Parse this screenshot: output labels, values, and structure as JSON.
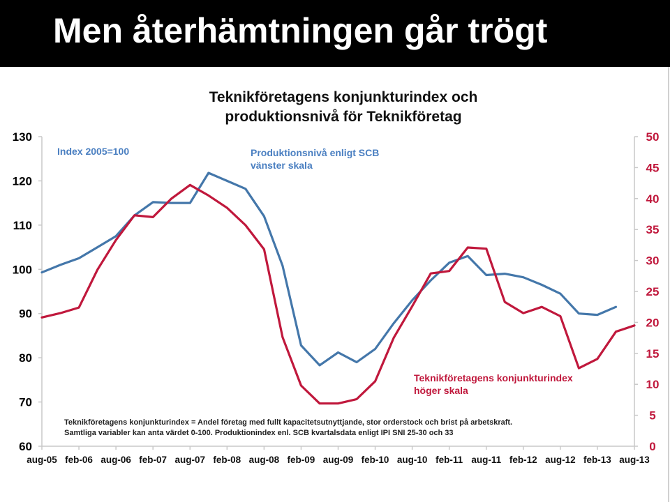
{
  "slide": {
    "title": "Men återhämtningen går trögt"
  },
  "chart_data": {
    "type": "line",
    "title_lines": [
      "Teknikföretagens konjunkturindex och",
      "produktionsnivå för Teknikföretag"
    ],
    "index_note": "Index 2005=100",
    "x_labels": [
      "aug-05",
      "feb-06",
      "aug-06",
      "feb-07",
      "aug-07",
      "feb-08",
      "aug-08",
      "feb-09",
      "aug-09",
      "feb-10",
      "aug-10",
      "feb-11",
      "aug-11",
      "feb-12",
      "aug-12",
      "feb-13",
      "aug-13"
    ],
    "left_axis": {
      "ylim": [
        60,
        130
      ],
      "ticks": [
        60,
        70,
        80,
        90,
        100,
        110,
        120,
        130
      ]
    },
    "right_axis": {
      "ylim": [
        0,
        50
      ],
      "ticks": [
        0,
        5,
        10,
        15,
        20,
        25,
        30,
        35,
        40,
        45,
        50
      ]
    },
    "grid": false,
    "colors": {
      "produktion": "#4477aa",
      "konjunktur": "#c0183c",
      "left_ticks": "#000000",
      "right_ticks": "#c0183c",
      "label_blue": "#4a7fc1",
      "label_red": "#c0183c"
    },
    "series": [
      {
        "key": "produktion",
        "axis": "left",
        "label_lines": [
          "Produktionsnivå enligt SCB",
          "vänster skala"
        ],
        "x": [
          0,
          0.5,
          1,
          1.5,
          2,
          2.5,
          3,
          3.5,
          4,
          4.5,
          5,
          5.5,
          6,
          6.5,
          7,
          7.5,
          8,
          8.5,
          9,
          9.5,
          10,
          10.5,
          11,
          11.5,
          12,
          12.5,
          13,
          13.5,
          14,
          14.5,
          15,
          15.5,
          16
        ],
        "values": [
          99.3,
          101.0,
          102.5,
          105.0,
          107.5,
          112.2,
          115.2,
          115.0,
          115.0,
          121.8,
          120.0,
          118.2,
          112.0,
          100.8,
          82.8,
          78.3,
          81.2,
          79.0,
          82.0,
          87.8,
          93.0,
          97.5,
          101.5,
          103.0,
          98.7,
          99.0,
          98.2,
          96.5,
          94.5,
          90.0,
          89.7,
          91.5,
          null
        ]
      },
      {
        "key": "konjunktur",
        "axis": "right",
        "label_lines": [
          "Teknikföretagens konjunkturindex",
          "höger skala"
        ],
        "x": [
          0,
          0.5,
          1,
          1.5,
          2,
          2.5,
          3,
          3.5,
          4,
          4.5,
          5,
          5.5,
          6,
          6.5,
          7,
          7.5,
          8,
          8.5,
          9,
          9.5,
          10,
          10.5,
          11,
          11.5,
          12,
          12.5,
          13,
          13.5,
          14,
          14.5,
          15,
          15.5,
          16
        ],
        "values": [
          20.8,
          21.5,
          22.4,
          28.5,
          33.3,
          37.3,
          37.0,
          40.0,
          42.2,
          40.5,
          38.5,
          35.7,
          31.8,
          17.6,
          9.8,
          6.9,
          6.9,
          7.6,
          10.5,
          17.5,
          22.6,
          27.9,
          28.3,
          32.1,
          31.9,
          23.3,
          21.5,
          22.5,
          21.0,
          12.6,
          14.1,
          18.5,
          19.5
        ]
      }
    ],
    "footnote_lines": [
      "Teknikföretagens konjunkturindex  = Andel företag med fullt kapacitetsutnyttjande, stor orderstock och brist på arbetskraft.",
      "Samtliga variabler kan anta värdet 0-100. Produktionindex  enl. SCB kvartalsdata  enligt IPI SNI 25-30 och 33"
    ]
  }
}
